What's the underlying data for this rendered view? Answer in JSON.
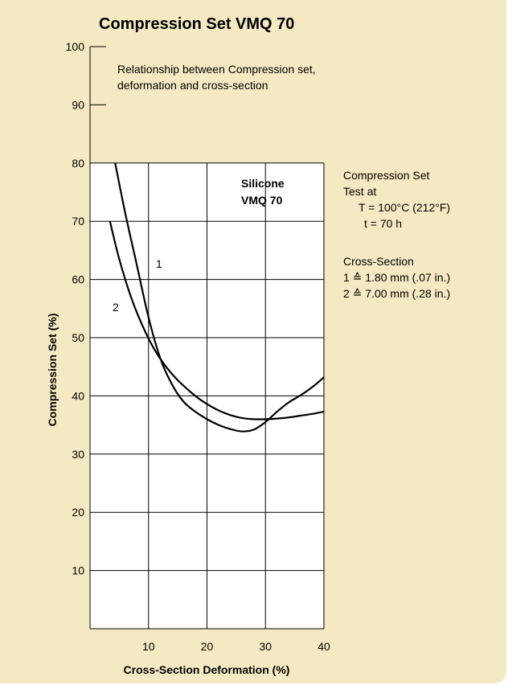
{
  "chart_data": {
    "type": "line",
    "title": "Compression Set VMQ 70",
    "xlabel": "Cross-Section Deformation (%)",
    "ylabel": "Compression Set (%)",
    "xlim": [
      0,
      40
    ],
    "ylim": [
      0,
      100
    ],
    "x_ticks": [
      "10",
      "20",
      "30",
      "40"
    ],
    "y_ticks": [
      "10",
      "20",
      "30",
      "40",
      "50",
      "60",
      "70",
      "80",
      "90",
      "100"
    ],
    "grid": true,
    "series": [
      {
        "name": "1",
        "x": [
          4.3,
          6,
          8,
          10,
          12,
          14,
          16,
          18,
          20,
          22,
          24,
          26,
          28,
          30,
          32,
          34,
          36,
          38,
          40
        ],
        "y": [
          80,
          71.5,
          62.5,
          53.5,
          46.5,
          42,
          39,
          37.3,
          36,
          35,
          34.3,
          33.9,
          34.2,
          35.5,
          37.3,
          38.9,
          40.1,
          41.5,
          43.2
        ]
      },
      {
        "name": "2",
        "x": [
          3.4,
          5,
          7,
          9,
          11,
          13,
          15,
          18,
          20,
          22,
          24,
          26,
          28,
          30,
          32,
          34,
          36,
          38,
          40
        ],
        "y": [
          70,
          63.5,
          57,
          52,
          48,
          45,
          42.7,
          40,
          38.6,
          37.5,
          36.7,
          36.2,
          36,
          36,
          36.1,
          36.3,
          36.6,
          36.9,
          37.3
        ]
      }
    ],
    "inset_label": [
      "Silicone",
      "VMQ 70"
    ],
    "annotation": [
      "Relationship between Compression set,",
      "deformation and cross-section"
    ],
    "side_notes": [
      "Compression Set",
      "Test at",
      "T = 100°C (212°F)",
      "t = 70 h",
      "Cross-Section",
      "1 ≙ 1.80 mm (.07 in.)",
      "2 ≙ 7.00 mm (.28 in.)"
    ],
    "plot_background": "#ffffff",
    "panel_background": "#f5e9c3"
  }
}
